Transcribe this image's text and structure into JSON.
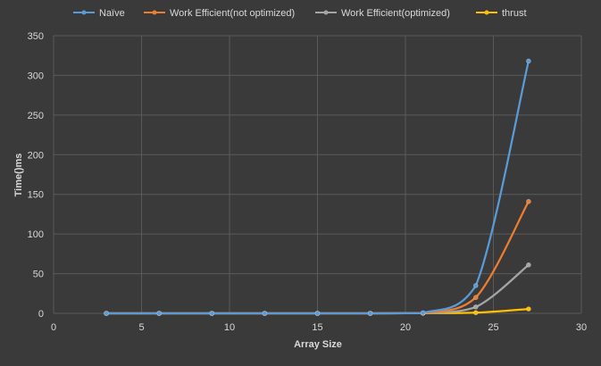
{
  "chart_data": {
    "type": "line",
    "title": "",
    "xlabel": "Array Size",
    "ylabel": "Time()ms",
    "xlim": [
      0,
      30
    ],
    "ylim": [
      0,
      350
    ],
    "xticks": [
      0,
      5,
      10,
      15,
      20,
      25,
      30
    ],
    "yticks": [
      0,
      50,
      100,
      150,
      200,
      250,
      300,
      350
    ],
    "grid": true,
    "legend_position": "top",
    "smooth": true,
    "series": [
      {
        "name": "Naïve",
        "color": "#5b9bd5",
        "x": [
          3,
          6,
          9,
          12,
          15,
          18,
          21,
          24,
          27
        ],
        "y": [
          0,
          0,
          0,
          0,
          0,
          0,
          0.6,
          35,
          318
        ]
      },
      {
        "name": "Work Efficient(not optimized)",
        "color": "#ed7d31",
        "x": [
          3,
          6,
          9,
          12,
          15,
          18,
          21,
          24,
          27
        ],
        "y": [
          0,
          0,
          0,
          0,
          0,
          0,
          0.4,
          20,
          141
        ]
      },
      {
        "name": "Work Efficient(optimized)",
        "color": "#a5a5a5",
        "x": [
          3,
          6,
          9,
          12,
          15,
          18,
          21,
          24,
          27
        ],
        "y": [
          0,
          0,
          0,
          0,
          0,
          0,
          0.3,
          8,
          61
        ]
      },
      {
        "name": "thrust",
        "color": "#ffc000",
        "x": [
          3,
          6,
          9,
          12,
          15,
          18,
          21,
          24,
          27
        ],
        "y": [
          0,
          0,
          0,
          0,
          0,
          0,
          0.2,
          0.8,
          5.5
        ]
      }
    ]
  }
}
